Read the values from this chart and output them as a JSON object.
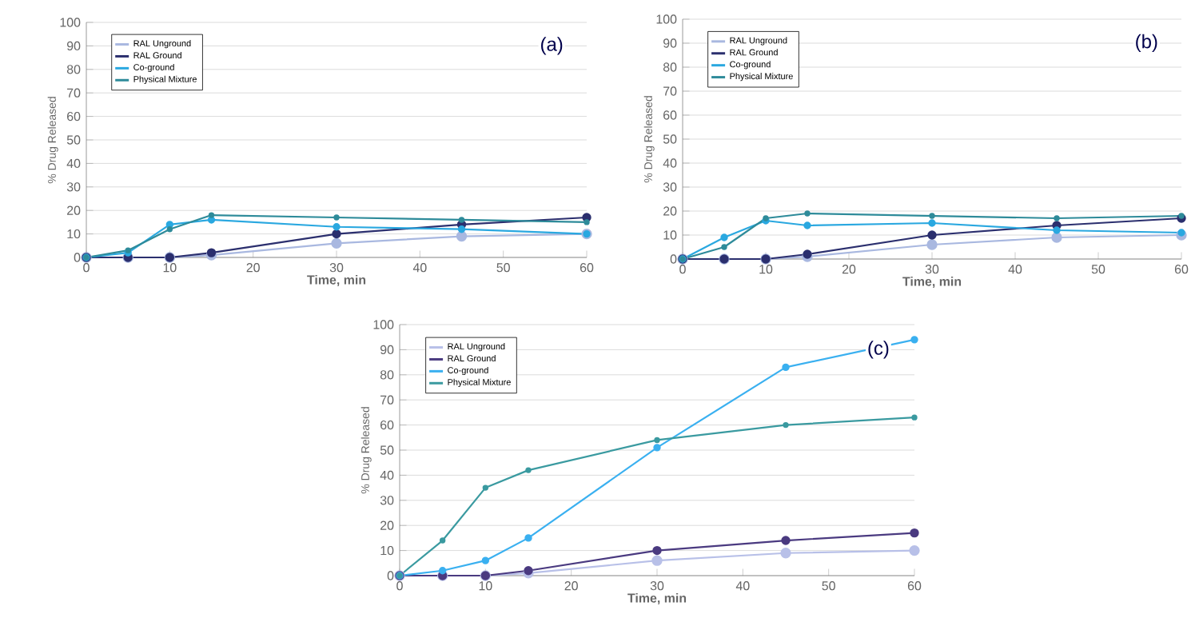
{
  "chart_data": [
    {
      "type": "line",
      "xlabel": "Time, min",
      "ylabel": "% Drug Released",
      "annotations": [
        "(a)"
      ],
      "x": [
        0,
        5,
        10,
        15,
        30,
        45,
        60
      ],
      "xlim": [
        0,
        60
      ],
      "ylim": [
        0,
        100
      ],
      "xticks": [
        0,
        10,
        20,
        30,
        40,
        50,
        60
      ],
      "yticks": [
        0,
        10,
        20,
        30,
        40,
        50,
        60,
        70,
        80,
        90,
        100
      ],
      "grid": "y",
      "legend": "top left",
      "marker": "circle",
      "series": [
        {
          "name": "RAL Unground",
          "color": "#a9b8e0",
          "values": [
            0,
            0,
            0,
            1,
            6,
            9,
            10
          ]
        },
        {
          "name": "RAL Ground",
          "color": "#2b2f6e",
          "values": [
            0,
            0,
            0,
            2,
            10,
            14,
            17
          ]
        },
        {
          "name": "Co-ground",
          "color": "#2aa8e0",
          "values": [
            0,
            2,
            14,
            16,
            13,
            12,
            10
          ]
        },
        {
          "name": "Physical Mixture",
          "color": "#2e8b9a",
          "values": [
            0,
            3,
            12,
            18,
            17,
            16,
            15
          ]
        }
      ]
    },
    {
      "type": "line",
      "xlabel": "Time, min",
      "ylabel": "% Drug Released",
      "annotations": [
        "(b)"
      ],
      "x": [
        0,
        5,
        10,
        15,
        30,
        45,
        60
      ],
      "xlim": [
        0,
        60
      ],
      "ylim": [
        0,
        100
      ],
      "xticks": [
        0,
        10,
        20,
        30,
        40,
        50,
        60
      ],
      "yticks": [
        0,
        10,
        20,
        30,
        40,
        50,
        60,
        70,
        80,
        90,
        100
      ],
      "grid": "y",
      "legend": "top left",
      "marker": "circle",
      "series": [
        {
          "name": "RAL Unground",
          "color": "#a9b8e0",
          "values": [
            0,
            0,
            0,
            1,
            6,
            9,
            10
          ]
        },
        {
          "name": "RAL Ground",
          "color": "#2b2f6e",
          "values": [
            0,
            0,
            0,
            2,
            10,
            14,
            17
          ]
        },
        {
          "name": "Co-ground",
          "color": "#2aa8e0",
          "values": [
            0,
            9,
            16,
            14,
            15,
            12,
            11
          ]
        },
        {
          "name": "Physical Mixture",
          "color": "#2e8b9a",
          "values": [
            0,
            5,
            17,
            19,
            18,
            17,
            18
          ]
        }
      ]
    },
    {
      "type": "line",
      "xlabel": "Time, min",
      "ylabel": "% Drug Released",
      "annotations": [
        "(c)"
      ],
      "x": [
        0,
        5,
        10,
        15,
        30,
        45,
        60
      ],
      "xlim": [
        0,
        60
      ],
      "ylim": [
        0,
        100
      ],
      "xticks": [
        0,
        10,
        20,
        30,
        40,
        50,
        60
      ],
      "yticks": [
        0,
        10,
        20,
        30,
        40,
        50,
        60,
        70,
        80,
        90,
        100
      ],
      "grid": "y",
      "legend": "top left",
      "marker": "circle",
      "series": [
        {
          "name": "RAL Unground",
          "color": "#b8c0e8",
          "values": [
            0,
            0,
            0,
            1,
            6,
            9,
            10
          ]
        },
        {
          "name": "RAL Ground",
          "color": "#4a3a80",
          "values": [
            0,
            0,
            0,
            2,
            10,
            14,
            17
          ]
        },
        {
          "name": "Co-ground",
          "color": "#3ab0f0",
          "values": [
            0,
            2,
            6,
            15,
            51,
            83,
            94
          ]
        },
        {
          "name": "Physical Mixture",
          "color": "#3a9aa0",
          "values": [
            0,
            14,
            35,
            42,
            54,
            60,
            63
          ]
        }
      ]
    }
  ]
}
